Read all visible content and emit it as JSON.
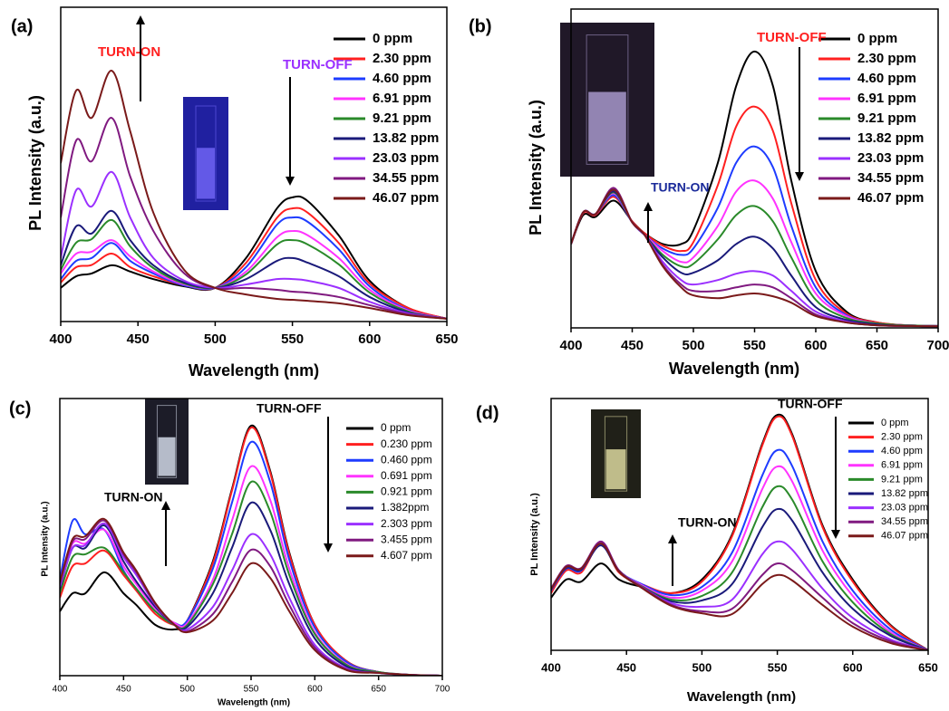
{
  "chart_data": [
    {
      "type": "line",
      "panel_label": "(a)",
      "x_label": "Wavelength (nm)",
      "y_label": "PL Intensity (a.u.)",
      "xlim": [
        400,
        650
      ],
      "xticks": [
        400,
        450,
        500,
        550,
        600,
        650
      ],
      "ylim": [
        0,
        100
      ],
      "annotations": [
        {
          "text": "TURN-ON",
          "color": "#ff2020"
        },
        {
          "text": "TURN-OFF",
          "color": "#9b30ff"
        }
      ],
      "x": [
        400,
        410,
        420,
        433,
        445,
        460,
        480,
        500,
        520,
        540,
        550,
        560,
        580,
        600,
        625,
        650
      ],
      "series": [
        {
          "name": "0 ppm",
          "color": "#000000",
          "values": [
            10.7,
            14.4,
            15.3,
            17.9,
            15.9,
            13.5,
            11.2,
            10.7,
            20.2,
            36,
            39.5,
            38.3,
            27.4,
            13,
            4.3,
            0.9
          ]
        },
        {
          "name": "2.30 ppm",
          "color": "#ff2020",
          "values": [
            12.4,
            17.3,
            18,
            21.6,
            17.3,
            14.4,
            11.5,
            10.7,
            18.7,
            33,
            36,
            34.6,
            25,
            12.1,
            4.3,
            0.9
          ]
        },
        {
          "name": "4.60 ppm",
          "color": "#1e3cff",
          "values": [
            13.5,
            19.3,
            20.2,
            25,
            19.3,
            15.3,
            11.5,
            10.7,
            17.3,
            30.8,
            33.1,
            31.7,
            23,
            11.2,
            3.7,
            0.9
          ]
        },
        {
          "name": "6.91 ppm",
          "color": "#ff33ff",
          "values": [
            15.3,
            21.6,
            22.2,
            25.9,
            20.7,
            15.9,
            11.8,
            10.7,
            15.9,
            26.8,
            28.8,
            27.4,
            20.2,
            10.1,
            3.5,
            0.9
          ]
        },
        {
          "name": "9.21 ppm",
          "color": "#2a8a2a",
          "values": [
            16.4,
            25.1,
            26.2,
            32.3,
            23.9,
            17,
            12.1,
            10.7,
            15,
            24.5,
            25.9,
            24.5,
            18.2,
            9.2,
            3.2,
            0.9
          ]
        },
        {
          "name": "13.82 ppm",
          "color": "#1a1a7a",
          "values": [
            17.9,
            30.3,
            28,
            35.2,
            25.9,
            17.9,
            12.4,
            10.7,
            13.5,
            19.3,
            20.2,
            18.7,
            14.4,
            7.8,
            2.9,
            0.9
          ]
        },
        {
          "name": "23.03 ppm",
          "color": "#9b30ff",
          "values": [
            20.2,
            41.8,
            36.6,
            47.6,
            33.1,
            20.2,
            13,
            10.7,
            11.8,
            13.5,
            13.5,
            13,
            10.7,
            6.3,
            2.6,
            0.9
          ]
        },
        {
          "name": "34.55 ppm",
          "color": "#801a80",
          "values": [
            33.1,
            57.6,
            51,
            64.8,
            46.1,
            28.8,
            15.3,
            10.7,
            10.7,
            10.1,
            9.5,
            9.2,
            7.8,
            5.2,
            2.3,
            0.9
          ]
        },
        {
          "name": "46.07 ppm",
          "color": "#7a1a1a",
          "values": [
            50.4,
            73.5,
            64.8,
            79.8,
            60.5,
            34.6,
            16.4,
            10.7,
            8.6,
            7.2,
            6.9,
            6.6,
            5.8,
            4.3,
            2,
            0.9
          ]
        }
      ]
    },
    {
      "type": "line",
      "panel_label": "(b)",
      "x_label": "Wavelength (nm)",
      "y_label": "PL Intensity (a.u.)",
      "xlim": [
        400,
        700
      ],
      "xticks": [
        400,
        450,
        500,
        550,
        600,
        650,
        700
      ],
      "ylim": [
        0,
        100
      ],
      "annotations": [
        {
          "text": "TURN-ON",
          "color": "#1a2a9a"
        },
        {
          "text": "TURN-OFF",
          "color": "#ff2020"
        }
      ],
      "x": [
        400,
        410,
        420,
        435,
        450,
        460,
        475,
        490,
        500,
        520,
        535,
        550,
        565,
        580,
        600,
        625,
        650,
        675,
        700
      ],
      "series": [
        {
          "name": "0 ppm",
          "color": "#000000",
          "values": [
            26.3,
            35.4,
            34.8,
            39.9,
            33.4,
            29.7,
            26.3,
            26.3,
            30.6,
            51.8,
            75.9,
            86.7,
            75.9,
            46.2,
            17.8,
            5.1,
            1.7,
            0.8,
            0.6
          ]
        },
        {
          "name": "2.30 ppm",
          "color": "#ff2020",
          "values": [
            26.3,
            36,
            35.4,
            41.1,
            33.4,
            29.7,
            25.8,
            24.1,
            26.9,
            44.8,
            63.2,
            69.4,
            61.8,
            39.1,
            15,
            4.5,
            1.7,
            0.8,
            0.6
          ]
        },
        {
          "name": "4.60 ppm",
          "color": "#1e3cff",
          "values": [
            26.3,
            36.3,
            35.7,
            41.6,
            33.1,
            29.2,
            24.9,
            22.9,
            24.9,
            37.7,
            51.8,
            56.9,
            50.4,
            32,
            12.7,
            4,
            1.4,
            0.8,
            0.6
          ]
        },
        {
          "name": "6.91 ppm",
          "color": "#ff33ff",
          "values": [
            26.3,
            36.3,
            35.7,
            42.2,
            33.1,
            29.2,
            24.1,
            20.7,
            22.1,
            32,
            42.8,
            46.2,
            40.5,
            26.9,
            10.8,
            3.7,
            1.4,
            0.8,
            0.6
          ]
        },
        {
          "name": "9.21 ppm",
          "color": "#2a8a2a",
          "values": [
            26.3,
            36.3,
            35.7,
            42.5,
            33.1,
            29.2,
            22.9,
            19.3,
            20.1,
            27.8,
            35.4,
            38.2,
            33.4,
            22.1,
            8.8,
            3.1,
            1.4,
            0.8,
            0.6
          ]
        },
        {
          "name": "13.82 ppm",
          "color": "#1a1a7a",
          "values": [
            26.3,
            36.3,
            35.7,
            42.8,
            33.1,
            29.2,
            22.1,
            17.3,
            17.3,
            21.2,
            26.3,
            28.6,
            24.9,
            16.4,
            6.5,
            2.5,
            1.1,
            0.6,
            0.5
          ]
        },
        {
          "name": "23.03 ppm",
          "color": "#9b30ff",
          "values": [
            26.3,
            36.3,
            35.7,
            43.3,
            33.1,
            29.2,
            20.7,
            15,
            13.6,
            15,
            17,
            17.8,
            16.4,
            11.6,
            5.1,
            2,
            0.8,
            0.6,
            0.5
          ]
        },
        {
          "name": "34.55 ppm",
          "color": "#801a80",
          "values": [
            26.3,
            36.3,
            35.7,
            43.9,
            33.1,
            29.2,
            19.8,
            13.6,
            11.6,
            11.6,
            12.7,
            13.6,
            12.7,
            9.3,
            4.2,
            1.7,
            0.8,
            0.6,
            0.5
          ]
        },
        {
          "name": "46.07 ppm",
          "color": "#7a1a1a",
          "values": [
            26.3,
            36.3,
            35.7,
            43.3,
            33.1,
            29.2,
            19.3,
            12.7,
            10.2,
            9.3,
            10.2,
            10.8,
            9.9,
            7.9,
            3.7,
            1.7,
            0.8,
            0.6,
            0.5
          ]
        }
      ]
    },
    {
      "type": "line",
      "panel_label": "(c)",
      "x_label": "Wavelength (nm)",
      "y_label": "PL Intensity (a.u.)",
      "xlim": [
        400,
        700
      ],
      "xticks": [
        400,
        450,
        500,
        550,
        600,
        650,
        700
      ],
      "ylim": [
        0,
        100
      ],
      "annotations": [
        {
          "text": "TURN-ON",
          "color": "#000000"
        },
        {
          "text": "TURN-OFF",
          "color": "#000000"
        }
      ],
      "x": [
        400,
        410,
        420,
        435,
        450,
        460,
        475,
        490,
        500,
        520,
        535,
        550,
        565,
        580,
        600,
        625,
        650,
        675,
        700
      ],
      "series": [
        {
          "name": "0 ppm",
          "color": "#000000",
          "values": [
            23.2,
            29.7,
            29.7,
            37.3,
            29.7,
            25.5,
            18.3,
            16.7,
            19.9,
            41.2,
            67.3,
            90.2,
            73.9,
            44.4,
            18.3,
            5.2,
            1.3,
            0.3,
            0
          ]
        },
        {
          "name": "0.230 ppm",
          "color": "#ff2020",
          "values": [
            28.1,
            39.5,
            40.5,
            45.1,
            36.3,
            30.7,
            22.2,
            18.3,
            19.9,
            40.5,
            66.7,
            89.5,
            73.2,
            43.8,
            18.3,
            5.2,
            1.3,
            0.3,
            0
          ]
        },
        {
          "name": "0.460 ppm",
          "color": "#1e3cff",
          "values": [
            34.6,
            55.9,
            51,
            52.6,
            37.9,
            31.4,
            23.2,
            19,
            19.9,
            38.6,
            62.4,
            84.3,
            69.9,
            41.8,
            17.3,
            4.9,
            1.3,
            0.3,
            0
          ]
        },
        {
          "name": "0.691 ppm",
          "color": "#ff33ff",
          "values": [
            33,
            47.7,
            47.7,
            52.6,
            39.5,
            33,
            24.2,
            19,
            19,
            34.6,
            55.9,
            75.5,
            63.4,
            38.6,
            15.7,
            4.2,
            1.3,
            0.3,
            0
          ]
        },
        {
          "name": "0.921 ppm",
          "color": "#2a8a2a",
          "values": [
            29.7,
            42.8,
            43.8,
            46.1,
            37.3,
            31.4,
            23.2,
            18.3,
            18.3,
            33,
            51,
            69.9,
            59.2,
            36.3,
            15,
            3.9,
            1.3,
            0.3,
            0
          ]
        },
        {
          "name": "1.382ppm",
          "color": "#1a1a7a",
          "values": [
            31.4,
            46.1,
            46.1,
            54.2,
            41.2,
            34,
            24.8,
            18.3,
            17.6,
            29.7,
            46.1,
            62.4,
            52.6,
            33,
            13.4,
            3.3,
            1,
            0.3,
            0
          ]
        },
        {
          "name": "2.303 ppm",
          "color": "#9b30ff",
          "values": [
            32,
            46.1,
            47.1,
            54.9,
            42.8,
            36.3,
            25.5,
            18.3,
            16.7,
            24.8,
            37.9,
            51,
            43.8,
            28.1,
            11.1,
            2.6,
            1,
            0.3,
            0
          ]
        },
        {
          "name": "3.455 ppm",
          "color": "#801a80",
          "values": [
            33,
            48.4,
            49.3,
            55.9,
            43.8,
            37.3,
            25.8,
            18.3,
            16,
            22.2,
            33.7,
            45.4,
            39.5,
            25.5,
            10.1,
            2.3,
            1,
            0.3,
            0
          ]
        },
        {
          "name": "4.607 ppm",
          "color": "#7a1a1a",
          "values": [
            33.7,
            49.3,
            50.3,
            56.5,
            44.4,
            37.9,
            26.1,
            18.3,
            15.7,
            19.9,
            29.7,
            40.5,
            35.3,
            23.2,
            9.2,
            2,
            1,
            0.3,
            0
          ]
        }
      ]
    },
    {
      "type": "line",
      "panel_label": "(d)",
      "x_label": "Wavelength (nm)",
      "y_label": "PL Intensity (a.u.)",
      "xlim": [
        400,
        650
      ],
      "xticks": [
        400,
        450,
        500,
        550,
        600,
        650
      ],
      "ylim": [
        0,
        100
      ],
      "annotations": [
        {
          "text": "TURN-ON",
          "color": "#000000"
        },
        {
          "text": "TURN-OFF",
          "color": "#000000"
        }
      ],
      "x": [
        400,
        410,
        420,
        433,
        445,
        460,
        480,
        500,
        520,
        540,
        550,
        560,
        580,
        600,
        625,
        650
      ],
      "series": [
        {
          "name": "0 ppm",
          "color": "#000000",
          "values": [
            20.9,
            28.1,
            27.3,
            34.5,
            28.1,
            25.2,
            22.7,
            28.1,
            46,
            82,
            93.5,
            85.6,
            49.6,
            28.1,
            10.1,
            0
          ]
        },
        {
          "name": "2.30 ppm",
          "color": "#ff2020",
          "values": [
            22.7,
            31.7,
            30.9,
            42.4,
            30.9,
            26.3,
            22.7,
            27.3,
            45.3,
            81.3,
            92.8,
            84.9,
            48.9,
            27.3,
            9.7,
            0
          ]
        },
        {
          "name": "4.60 ppm",
          "color": "#1e3cff",
          "values": [
            23.7,
            32.4,
            31.7,
            43.2,
            31.7,
            26.3,
            21.9,
            25.2,
            38.8,
            69.4,
            79.5,
            73,
            43.2,
            23.7,
            8.3,
            0
          ]
        },
        {
          "name": "6.91 ppm",
          "color": "#ff33ff",
          "values": [
            24.5,
            33.1,
            32.4,
            43.2,
            31.7,
            25.9,
            20.9,
            23.7,
            35.3,
            64,
            73,
            66.9,
            39.6,
            21.6,
            7.2,
            0
          ]
        },
        {
          "name": "9.21 ppm",
          "color": "#2a8a2a",
          "values": [
            24.5,
            33.1,
            32.4,
            42.4,
            31.7,
            25.5,
            20.1,
            21.6,
            30.9,
            56.8,
            65.1,
            59.7,
            35.3,
            19.1,
            6.5,
            0
          ]
        },
        {
          "name": "13.82 ppm",
          "color": "#1a1a7a",
          "values": [
            24.5,
            32.7,
            32,
            41.7,
            31.3,
            25.2,
            19.4,
            19.8,
            26.3,
            48.9,
            56.1,
            51.4,
            30.9,
            16.5,
            5.8,
            0
          ]
        },
        {
          "name": "23.03 ppm",
          "color": "#9b30ff",
          "values": [
            24.5,
            33.1,
            32.4,
            42.4,
            31.7,
            25.2,
            18.7,
            17.3,
            20.1,
            38.1,
            43.2,
            39.9,
            24.5,
            12.9,
            4.3,
            0
          ]
        },
        {
          "name": "34.55 ppm",
          "color": "#801a80",
          "values": [
            24.5,
            33.5,
            32.7,
            43.2,
            31.7,
            25.2,
            18,
            15.5,
            16.5,
            29.9,
            34.5,
            31.7,
            20.9,
            10.8,
            3.6,
            0
          ]
        },
        {
          "name": "46.07 ppm",
          "color": "#7a1a1a",
          "values": [
            24.1,
            33.1,
            32.4,
            42.4,
            31.3,
            24.8,
            17.6,
            14.7,
            14.4,
            26.3,
            29.9,
            27.7,
            18,
            9.4,
            2.9,
            0
          ]
        }
      ]
    }
  ]
}
